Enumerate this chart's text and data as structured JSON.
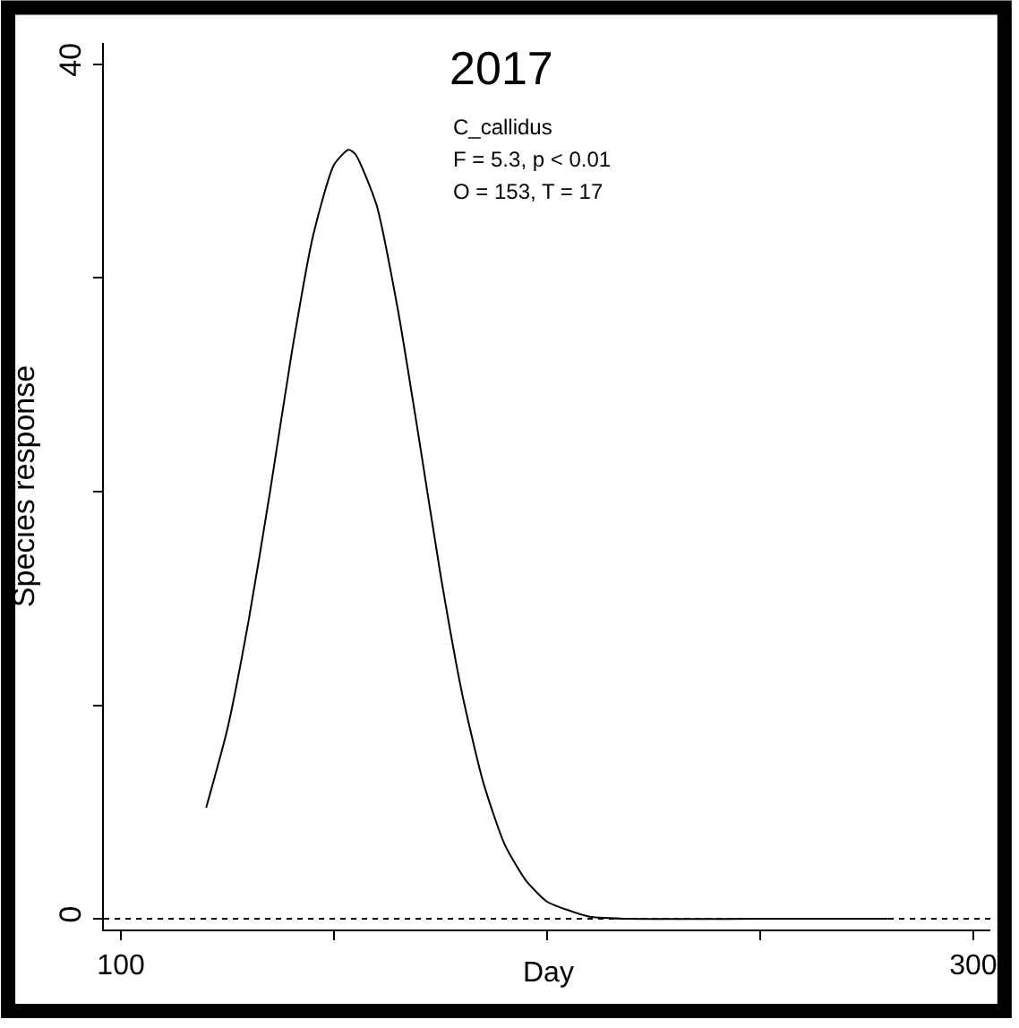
{
  "chart_data": {
    "type": "line",
    "title": "2017",
    "xlabel": "Day",
    "ylabel": "Species response",
    "annotations": [
      "C_callidus",
      "F = 5.3, p < 0.01",
      "O = 153, T = 17"
    ],
    "x": [
      120,
      125,
      130,
      135,
      140,
      145,
      150,
      153.4,
      155,
      160,
      165,
      170,
      175,
      180,
      185,
      190,
      195,
      200,
      205,
      210,
      220,
      250,
      280
    ],
    "series": [
      {
        "color": "#000000",
        "values": [
          5.2,
          8.9,
          14.0,
          20.0,
          26.4,
          31.9,
          35.3,
          36.0,
          35.8,
          33.4,
          28.5,
          22.4,
          16.1,
          10.6,
          6.4,
          3.5,
          1.8,
          0.8,
          0.4,
          0.1,
          0,
          0,
          0
        ]
      }
    ],
    "xlim": [
      96,
      304
    ],
    "ylim": [
      -0.5,
      41
    ],
    "xticks": [
      100,
      {
        "value": 150,
        "label": null
      },
      {
        "value": 200,
        "label": null
      },
      {
        "value": 250,
        "label": null
      },
      300
    ],
    "yticks": [
      0,
      {
        "value": 10,
        "label": null
      },
      {
        "value": 20,
        "label": null
      },
      {
        "value": 30,
        "label": null
      },
      40
    ],
    "ref_lines": [
      {
        "axis": "y",
        "value": 0,
        "color": "#000000",
        "line_style": "dotted"
      }
    ],
    "marker": "none",
    "line_style": "solid"
  }
}
